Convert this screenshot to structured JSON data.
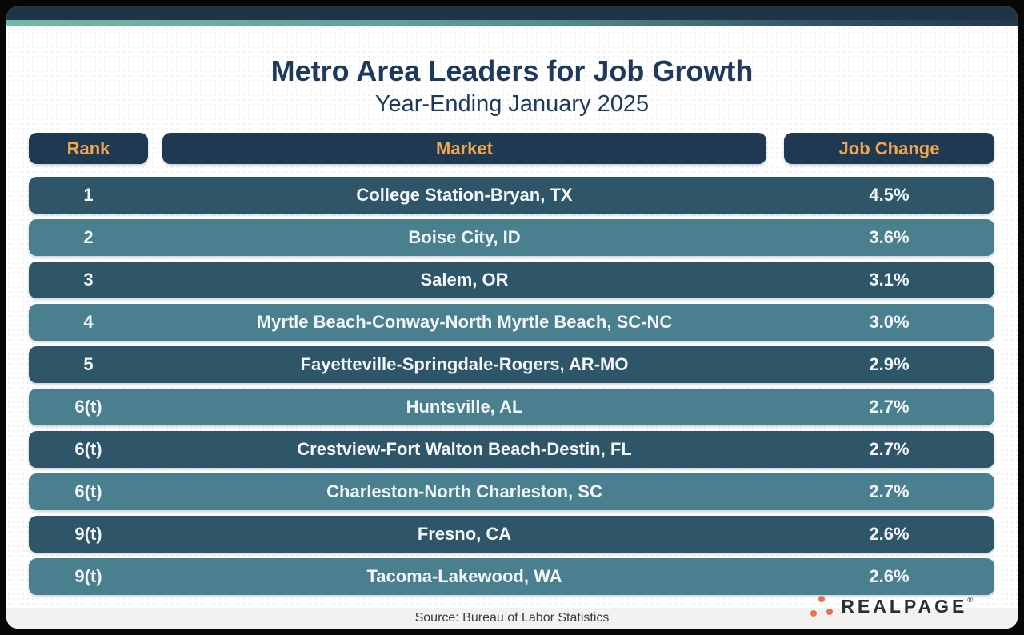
{
  "title": "Metro Area Leaders for Job Growth",
  "subtitle": "Year-Ending January 2025",
  "columns": {
    "rank": "Rank",
    "market": "Market",
    "job_change": "Job Change"
  },
  "rows": [
    {
      "rank": "1",
      "market": "College Station-Bryan, TX",
      "job_change": "4.5%"
    },
    {
      "rank": "2",
      "market": "Boise City, ID",
      "job_change": "3.6%"
    },
    {
      "rank": "3",
      "market": "Salem, OR",
      "job_change": "3.1%"
    },
    {
      "rank": "4",
      "market": "Myrtle Beach-Conway-North Myrtle Beach, SC-NC",
      "job_change": "3.0%"
    },
    {
      "rank": "5",
      "market": "Fayetteville-Springdale-Rogers, AR-MO",
      "job_change": "2.9%"
    },
    {
      "rank": "6(t)",
      "market": "Huntsville, AL",
      "job_change": "2.7%"
    },
    {
      "rank": "6(t)",
      "market": "Crestview-Fort Walton Beach-Destin, FL",
      "job_change": "2.7%"
    },
    {
      "rank": "6(t)",
      "market": "Charleston-North Charleston, SC",
      "job_change": "2.7%"
    },
    {
      "rank": "9(t)",
      "market": "Fresno, CA",
      "job_change": "2.6%"
    },
    {
      "rank": "9(t)",
      "market": "Tacoma-Lakewood, WA",
      "job_change": "2.6%"
    }
  ],
  "footer": {
    "source": "Source: Bureau of Labor Statistics"
  },
  "brand": {
    "name": "REALPAGE",
    "trademark": "®"
  },
  "colors": {
    "top_bar_navy": "#213349",
    "accent_teal": "#70bba3",
    "title_navy": "#1d3a5c",
    "header_pill_navy": "#1e3951",
    "header_text_orange": "#f0a74f",
    "row_dark": "#2e5568",
    "row_light": "#4a7f90",
    "row_text": "#f3f6f7",
    "footer_bg": "#f2f2f1",
    "logo_orange": "#e87150"
  },
  "chart_data": {
    "type": "table",
    "title": "Metro Area Leaders for Job Growth",
    "subtitle": "Year-Ending January 2025",
    "columns": [
      "Rank",
      "Market",
      "Job Change"
    ],
    "rows": [
      [
        "1",
        "College Station-Bryan, TX",
        "4.5%"
      ],
      [
        "2",
        "Boise City, ID",
        "3.6%"
      ],
      [
        "3",
        "Salem, OR",
        "3.1%"
      ],
      [
        "4",
        "Myrtle Beach-Conway-North Myrtle Beach, SC-NC",
        "3.0%"
      ],
      [
        "5",
        "Fayetteville-Springdale-Rogers, AR-MO",
        "2.9%"
      ],
      [
        "6(t)",
        "Huntsville, AL",
        "2.7%"
      ],
      [
        "6(t)",
        "Crestview-Fort Walton Beach-Destin, FL",
        "2.7%"
      ],
      [
        "6(t)",
        "Charleston-North Charleston, SC",
        "2.7%"
      ],
      [
        "9(t)",
        "Fresno, CA",
        "2.6%"
      ],
      [
        "9(t)",
        "Tacoma-Lakewood, WA",
        "2.6%"
      ]
    ],
    "job_change_values_pct": [
      4.5,
      3.6,
      3.1,
      3.0,
      2.9,
      2.7,
      2.7,
      2.7,
      2.6,
      2.6
    ],
    "source": "Source: Bureau of Labor Statistics"
  }
}
